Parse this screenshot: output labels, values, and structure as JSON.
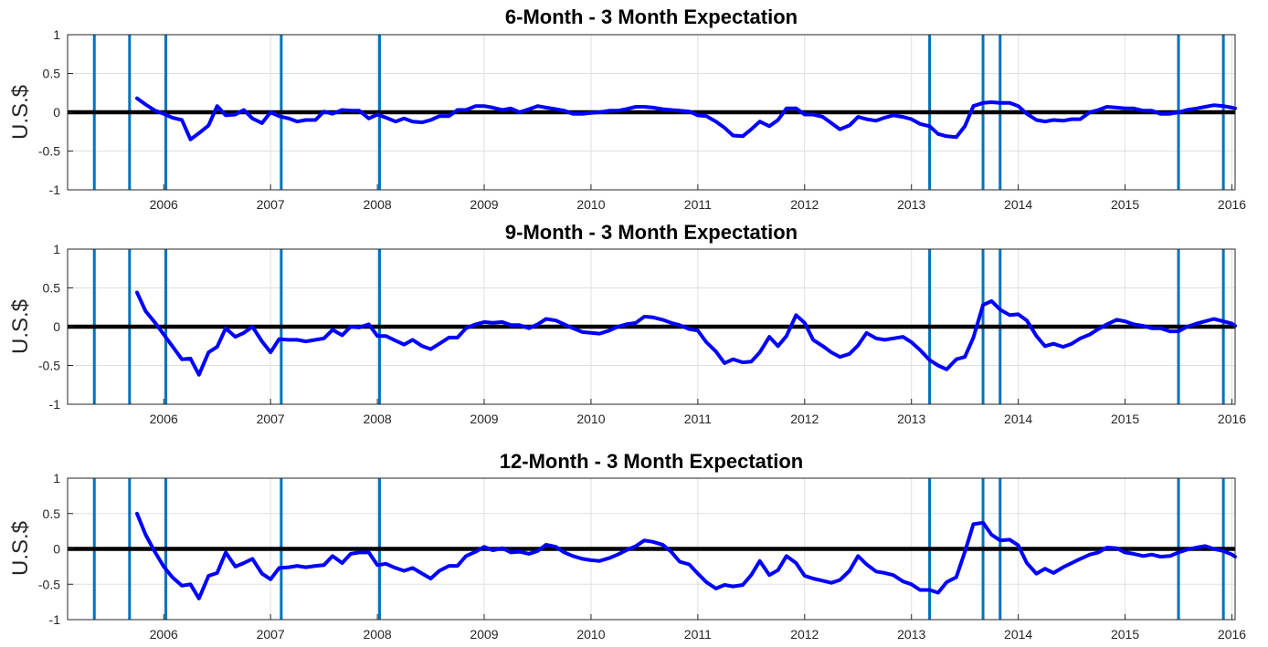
{
  "chart_data": [
    {
      "type": "line",
      "title": "6-Month - 3 Month Expectation",
      "xlabel": "",
      "ylabel": "U.S.$",
      "xlim": [
        2005.1,
        2016.03
      ],
      "ylim": [
        -1,
        1
      ],
      "xticks": [
        "2006",
        "2007",
        "2008",
        "2009",
        "2010",
        "2011",
        "2012",
        "2013",
        "2014",
        "2015",
        "2016"
      ],
      "yticks": [
        "-1",
        "-0.5",
        "0",
        "0.5",
        "1"
      ],
      "grid": true,
      "legend": "none",
      "series_color": "#0000ff",
      "zero_line_color": "#000000",
      "vline_color": "#0072bd",
      "vlines": [
        2005.35,
        2005.68,
        2006.02,
        2007.1,
        2008.02,
        2013.17,
        2013.67,
        2013.83,
        2015.5,
        2015.92
      ],
      "x": [
        2005.75,
        2005.83,
        2005.92,
        2006.0,
        2006.08,
        2006.17,
        2006.25,
        2006.33,
        2006.42,
        2006.5,
        2006.58,
        2006.67,
        2006.75,
        2006.83,
        2006.92,
        2007.0,
        2007.08,
        2007.17,
        2007.25,
        2007.33,
        2007.42,
        2007.5,
        2007.58,
        2007.67,
        2007.75,
        2007.83,
        2007.92,
        2008.0,
        2008.08,
        2008.17,
        2008.25,
        2008.33,
        2008.42,
        2008.5,
        2008.58,
        2008.67,
        2008.75,
        2008.83,
        2008.92,
        2009.0,
        2009.08,
        2009.17,
        2009.25,
        2009.33,
        2009.42,
        2009.5,
        2009.58,
        2009.67,
        2009.75,
        2009.83,
        2009.92,
        2010.0,
        2010.08,
        2010.17,
        2010.25,
        2010.33,
        2010.42,
        2010.5,
        2010.58,
        2010.67,
        2010.75,
        2010.83,
        2010.92,
        2011.0,
        2011.08,
        2011.17,
        2011.25,
        2011.33,
        2011.42,
        2011.5,
        2011.58,
        2011.67,
        2011.75,
        2011.83,
        2011.92,
        2012.0,
        2012.08,
        2012.17,
        2012.25,
        2012.33,
        2012.42,
        2012.5,
        2012.58,
        2012.67,
        2012.75,
        2012.83,
        2012.92,
        2013.0,
        2013.08,
        2013.17,
        2013.25,
        2013.33,
        2013.42,
        2013.5,
        2013.58,
        2013.67,
        2013.75,
        2013.83,
        2013.92,
        2014.0,
        2014.08,
        2014.17,
        2014.25,
        2014.33,
        2014.42,
        2014.5,
        2014.58,
        2014.67,
        2014.75,
        2014.83,
        2014.92,
        2015.0,
        2015.08,
        2015.17,
        2015.25,
        2015.33,
        2015.42,
        2015.5,
        2015.58,
        2015.67,
        2015.75,
        2015.83,
        2015.92,
        2016.0,
        2016.03
      ],
      "y": [
        0.18,
        0.1,
        0.02,
        -0.02,
        -0.07,
        -0.1,
        -0.35,
        -0.27,
        -0.17,
        0.08,
        -0.04,
        -0.03,
        0.03,
        -0.08,
        -0.14,
        0.0,
        -0.05,
        -0.08,
        -0.12,
        -0.1,
        -0.1,
        0.01,
        -0.02,
        0.03,
        0.02,
        0.02,
        -0.08,
        -0.03,
        -0.07,
        -0.12,
        -0.08,
        -0.12,
        -0.13,
        -0.1,
        -0.05,
        -0.05,
        0.03,
        0.03,
        0.08,
        0.08,
        0.06,
        0.03,
        0.05,
        0.0,
        0.04,
        0.08,
        0.06,
        0.04,
        0.02,
        -0.02,
        -0.02,
        -0.01,
        0.0,
        0.02,
        0.02,
        0.04,
        0.07,
        0.07,
        0.06,
        0.04,
        0.03,
        0.02,
        0.01,
        -0.04,
        -0.05,
        -0.12,
        -0.2,
        -0.3,
        -0.31,
        -0.22,
        -0.12,
        -0.18,
        -0.1,
        0.05,
        0.05,
        -0.03,
        -0.03,
        -0.06,
        -0.14,
        -0.22,
        -0.17,
        -0.06,
        -0.09,
        -0.11,
        -0.07,
        -0.04,
        -0.06,
        -0.09,
        -0.15,
        -0.18,
        -0.28,
        -0.31,
        -0.32,
        -0.18,
        0.08,
        0.12,
        0.13,
        0.12,
        0.12,
        0.08,
        -0.02,
        -0.1,
        -0.12,
        -0.1,
        -0.11,
        -0.09,
        -0.09,
        0.0,
        0.03,
        0.07,
        0.06,
        0.05,
        0.05,
        0.02,
        0.02,
        -0.02,
        -0.02,
        0.0,
        0.03,
        0.05,
        0.07,
        0.09,
        0.08,
        0.06,
        0.05
      ]
    },
    {
      "type": "line",
      "title": "9-Month - 3 Month Expectation",
      "xlabel": "",
      "ylabel": "U.S.$",
      "xlim": [
        2005.1,
        2016.03
      ],
      "ylim": [
        -1,
        1
      ],
      "xticks": [
        "2006",
        "2007",
        "2008",
        "2009",
        "2010",
        "2011",
        "2012",
        "2013",
        "2014",
        "2015",
        "2016"
      ],
      "yticks": [
        "-1",
        "-0.5",
        "0",
        "0.5",
        "1"
      ],
      "grid": true,
      "legend": "none",
      "series_color": "#0000ff",
      "zero_line_color": "#000000",
      "vline_color": "#0072bd",
      "vlines": [
        2005.35,
        2005.68,
        2006.02,
        2007.1,
        2008.02,
        2013.17,
        2013.67,
        2013.83,
        2015.5,
        2015.92
      ],
      "x": [
        2005.75,
        2005.83,
        2005.92,
        2006.0,
        2006.08,
        2006.17,
        2006.25,
        2006.33,
        2006.42,
        2006.5,
        2006.58,
        2006.67,
        2006.75,
        2006.83,
        2006.92,
        2007.0,
        2007.08,
        2007.17,
        2007.25,
        2007.33,
        2007.42,
        2007.5,
        2007.58,
        2007.67,
        2007.75,
        2007.83,
        2007.92,
        2008.0,
        2008.08,
        2008.17,
        2008.25,
        2008.33,
        2008.42,
        2008.5,
        2008.58,
        2008.67,
        2008.75,
        2008.83,
        2008.92,
        2009.0,
        2009.08,
        2009.17,
        2009.25,
        2009.33,
        2009.42,
        2009.5,
        2009.58,
        2009.67,
        2009.75,
        2009.83,
        2009.92,
        2010.0,
        2010.08,
        2010.17,
        2010.25,
        2010.33,
        2010.42,
        2010.5,
        2010.58,
        2010.67,
        2010.75,
        2010.83,
        2010.92,
        2011.0,
        2011.08,
        2011.17,
        2011.25,
        2011.33,
        2011.42,
        2011.5,
        2011.58,
        2011.67,
        2011.75,
        2011.83,
        2011.92,
        2012.0,
        2012.08,
        2012.17,
        2012.25,
        2012.33,
        2012.42,
        2012.5,
        2012.58,
        2012.67,
        2012.75,
        2012.83,
        2012.92,
        2013.0,
        2013.08,
        2013.17,
        2013.25,
        2013.33,
        2013.42,
        2013.5,
        2013.58,
        2013.67,
        2013.75,
        2013.83,
        2013.92,
        2014.0,
        2014.08,
        2014.17,
        2014.25,
        2014.33,
        2014.42,
        2014.5,
        2014.58,
        2014.67,
        2014.75,
        2014.83,
        2014.92,
        2015.0,
        2015.08,
        2015.17,
        2015.25,
        2015.33,
        2015.42,
        2015.5,
        2015.58,
        2015.67,
        2015.75,
        2015.83,
        2015.92,
        2016.0,
        2016.03
      ],
      "y": [
        0.44,
        0.2,
        0.05,
        -0.1,
        -0.25,
        -0.42,
        -0.41,
        -0.62,
        -0.33,
        -0.26,
        -0.02,
        -0.13,
        -0.08,
        0.0,
        -0.19,
        -0.33,
        -0.16,
        -0.17,
        -0.17,
        -0.19,
        -0.17,
        -0.15,
        -0.04,
        -0.11,
        0.0,
        -0.01,
        0.03,
        -0.12,
        -0.12,
        -0.18,
        -0.23,
        -0.17,
        -0.25,
        -0.29,
        -0.22,
        -0.14,
        -0.14,
        -0.02,
        0.03,
        0.06,
        0.05,
        0.06,
        0.02,
        0.02,
        -0.02,
        0.03,
        0.1,
        0.08,
        0.03,
        -0.02,
        -0.07,
        -0.08,
        -0.09,
        -0.05,
        0.0,
        0.03,
        0.05,
        0.13,
        0.12,
        0.09,
        0.05,
        0.02,
        -0.03,
        -0.05,
        -0.2,
        -0.32,
        -0.47,
        -0.42,
        -0.46,
        -0.45,
        -0.33,
        -0.13,
        -0.25,
        -0.12,
        0.15,
        0.05,
        -0.17,
        -0.25,
        -0.33,
        -0.39,
        -0.35,
        -0.24,
        -0.08,
        -0.15,
        -0.17,
        -0.15,
        -0.13,
        -0.2,
        -0.3,
        -0.43,
        -0.5,
        -0.55,
        -0.42,
        -0.39,
        -0.14,
        0.28,
        0.33,
        0.22,
        0.15,
        0.16,
        0.08,
        -0.12,
        -0.25,
        -0.22,
        -0.26,
        -0.22,
        -0.15,
        -0.1,
        -0.03,
        0.03,
        0.09,
        0.07,
        0.03,
        0.01,
        -0.02,
        -0.02,
        -0.06,
        -0.06,
        0.0,
        0.04,
        0.07,
        0.1,
        0.07,
        0.04,
        0.01
      ]
    },
    {
      "type": "line",
      "title": "12-Month - 3 Month Expectation",
      "xlabel": "",
      "ylabel": "U.S.$",
      "xlim": [
        2005.1,
        2016.03
      ],
      "ylim": [
        -1,
        1
      ],
      "xticks": [
        "2006",
        "2007",
        "2008",
        "2009",
        "2010",
        "2011",
        "2012",
        "2013",
        "2014",
        "2015",
        "2016"
      ],
      "yticks": [
        "-1",
        "-0.5",
        "0",
        "0.5",
        "1"
      ],
      "grid": true,
      "legend": "none",
      "series_color": "#0000ff",
      "zero_line_color": "#000000",
      "vline_color": "#0072bd",
      "vlines": [
        2005.35,
        2005.68,
        2006.02,
        2007.1,
        2008.02,
        2013.17,
        2013.67,
        2013.83,
        2015.5,
        2015.92
      ],
      "x": [
        2005.75,
        2005.83,
        2005.92,
        2006.0,
        2006.08,
        2006.17,
        2006.25,
        2006.33,
        2006.42,
        2006.5,
        2006.58,
        2006.67,
        2006.75,
        2006.83,
        2006.92,
        2007.0,
        2007.08,
        2007.17,
        2007.25,
        2007.33,
        2007.42,
        2007.5,
        2007.58,
        2007.67,
        2007.75,
        2007.83,
        2007.92,
        2008.0,
        2008.08,
        2008.17,
        2008.25,
        2008.33,
        2008.42,
        2008.5,
        2008.58,
        2008.67,
        2008.75,
        2008.83,
        2008.92,
        2009.0,
        2009.08,
        2009.17,
        2009.25,
        2009.33,
        2009.42,
        2009.5,
        2009.58,
        2009.67,
        2009.75,
        2009.83,
        2009.92,
        2010.0,
        2010.08,
        2010.17,
        2010.25,
        2010.33,
        2010.42,
        2010.5,
        2010.58,
        2010.67,
        2010.75,
        2010.83,
        2010.92,
        2011.0,
        2011.08,
        2011.17,
        2011.25,
        2011.33,
        2011.42,
        2011.5,
        2011.58,
        2011.67,
        2011.75,
        2011.83,
        2011.92,
        2012.0,
        2012.08,
        2012.17,
        2012.25,
        2012.33,
        2012.42,
        2012.5,
        2012.58,
        2012.67,
        2012.75,
        2012.83,
        2012.92,
        2013.0,
        2013.08,
        2013.17,
        2013.25,
        2013.33,
        2013.42,
        2013.5,
        2013.58,
        2013.67,
        2013.75,
        2013.83,
        2013.92,
        2014.0,
        2014.08,
        2014.17,
        2014.25,
        2014.33,
        2014.42,
        2014.5,
        2014.58,
        2014.67,
        2014.75,
        2014.83,
        2014.92,
        2015.0,
        2015.08,
        2015.17,
        2015.25,
        2015.33,
        2015.42,
        2015.5,
        2015.58,
        2015.67,
        2015.75,
        2015.83,
        2015.92,
        2016.0,
        2016.03
      ],
      "y": [
        0.5,
        0.2,
        -0.05,
        -0.25,
        -0.4,
        -0.52,
        -0.5,
        -0.7,
        -0.38,
        -0.34,
        -0.05,
        -0.25,
        -0.2,
        -0.14,
        -0.35,
        -0.43,
        -0.27,
        -0.26,
        -0.24,
        -0.26,
        -0.24,
        -0.23,
        -0.1,
        -0.2,
        -0.07,
        -0.05,
        -0.05,
        -0.23,
        -0.21,
        -0.27,
        -0.31,
        -0.27,
        -0.35,
        -0.42,
        -0.31,
        -0.24,
        -0.24,
        -0.1,
        -0.04,
        0.03,
        -0.02,
        0.01,
        -0.05,
        -0.04,
        -0.07,
        -0.03,
        0.06,
        0.03,
        -0.05,
        -0.1,
        -0.14,
        -0.16,
        -0.17,
        -0.13,
        -0.08,
        -0.02,
        0.04,
        0.12,
        0.1,
        0.06,
        -0.04,
        -0.18,
        -0.22,
        -0.35,
        -0.47,
        -0.56,
        -0.51,
        -0.53,
        -0.51,
        -0.37,
        -0.17,
        -0.37,
        -0.3,
        -0.1,
        -0.2,
        -0.38,
        -0.42,
        -0.45,
        -0.48,
        -0.44,
        -0.31,
        -0.1,
        -0.22,
        -0.32,
        -0.34,
        -0.37,
        -0.46,
        -0.5,
        -0.58,
        -0.58,
        -0.62,
        -0.47,
        -0.4,
        -0.04,
        0.35,
        0.37,
        0.2,
        0.12,
        0.13,
        0.05,
        -0.2,
        -0.35,
        -0.28,
        -0.34,
        -0.26,
        -0.2,
        -0.14,
        -0.08,
        -0.05,
        0.02,
        0.01,
        -0.05,
        -0.07,
        -0.1,
        -0.08,
        -0.11,
        -0.1,
        -0.05,
        -0.01,
        0.02,
        0.04,
        0.0,
        -0.03,
        -0.08,
        -0.11
      ]
    }
  ]
}
